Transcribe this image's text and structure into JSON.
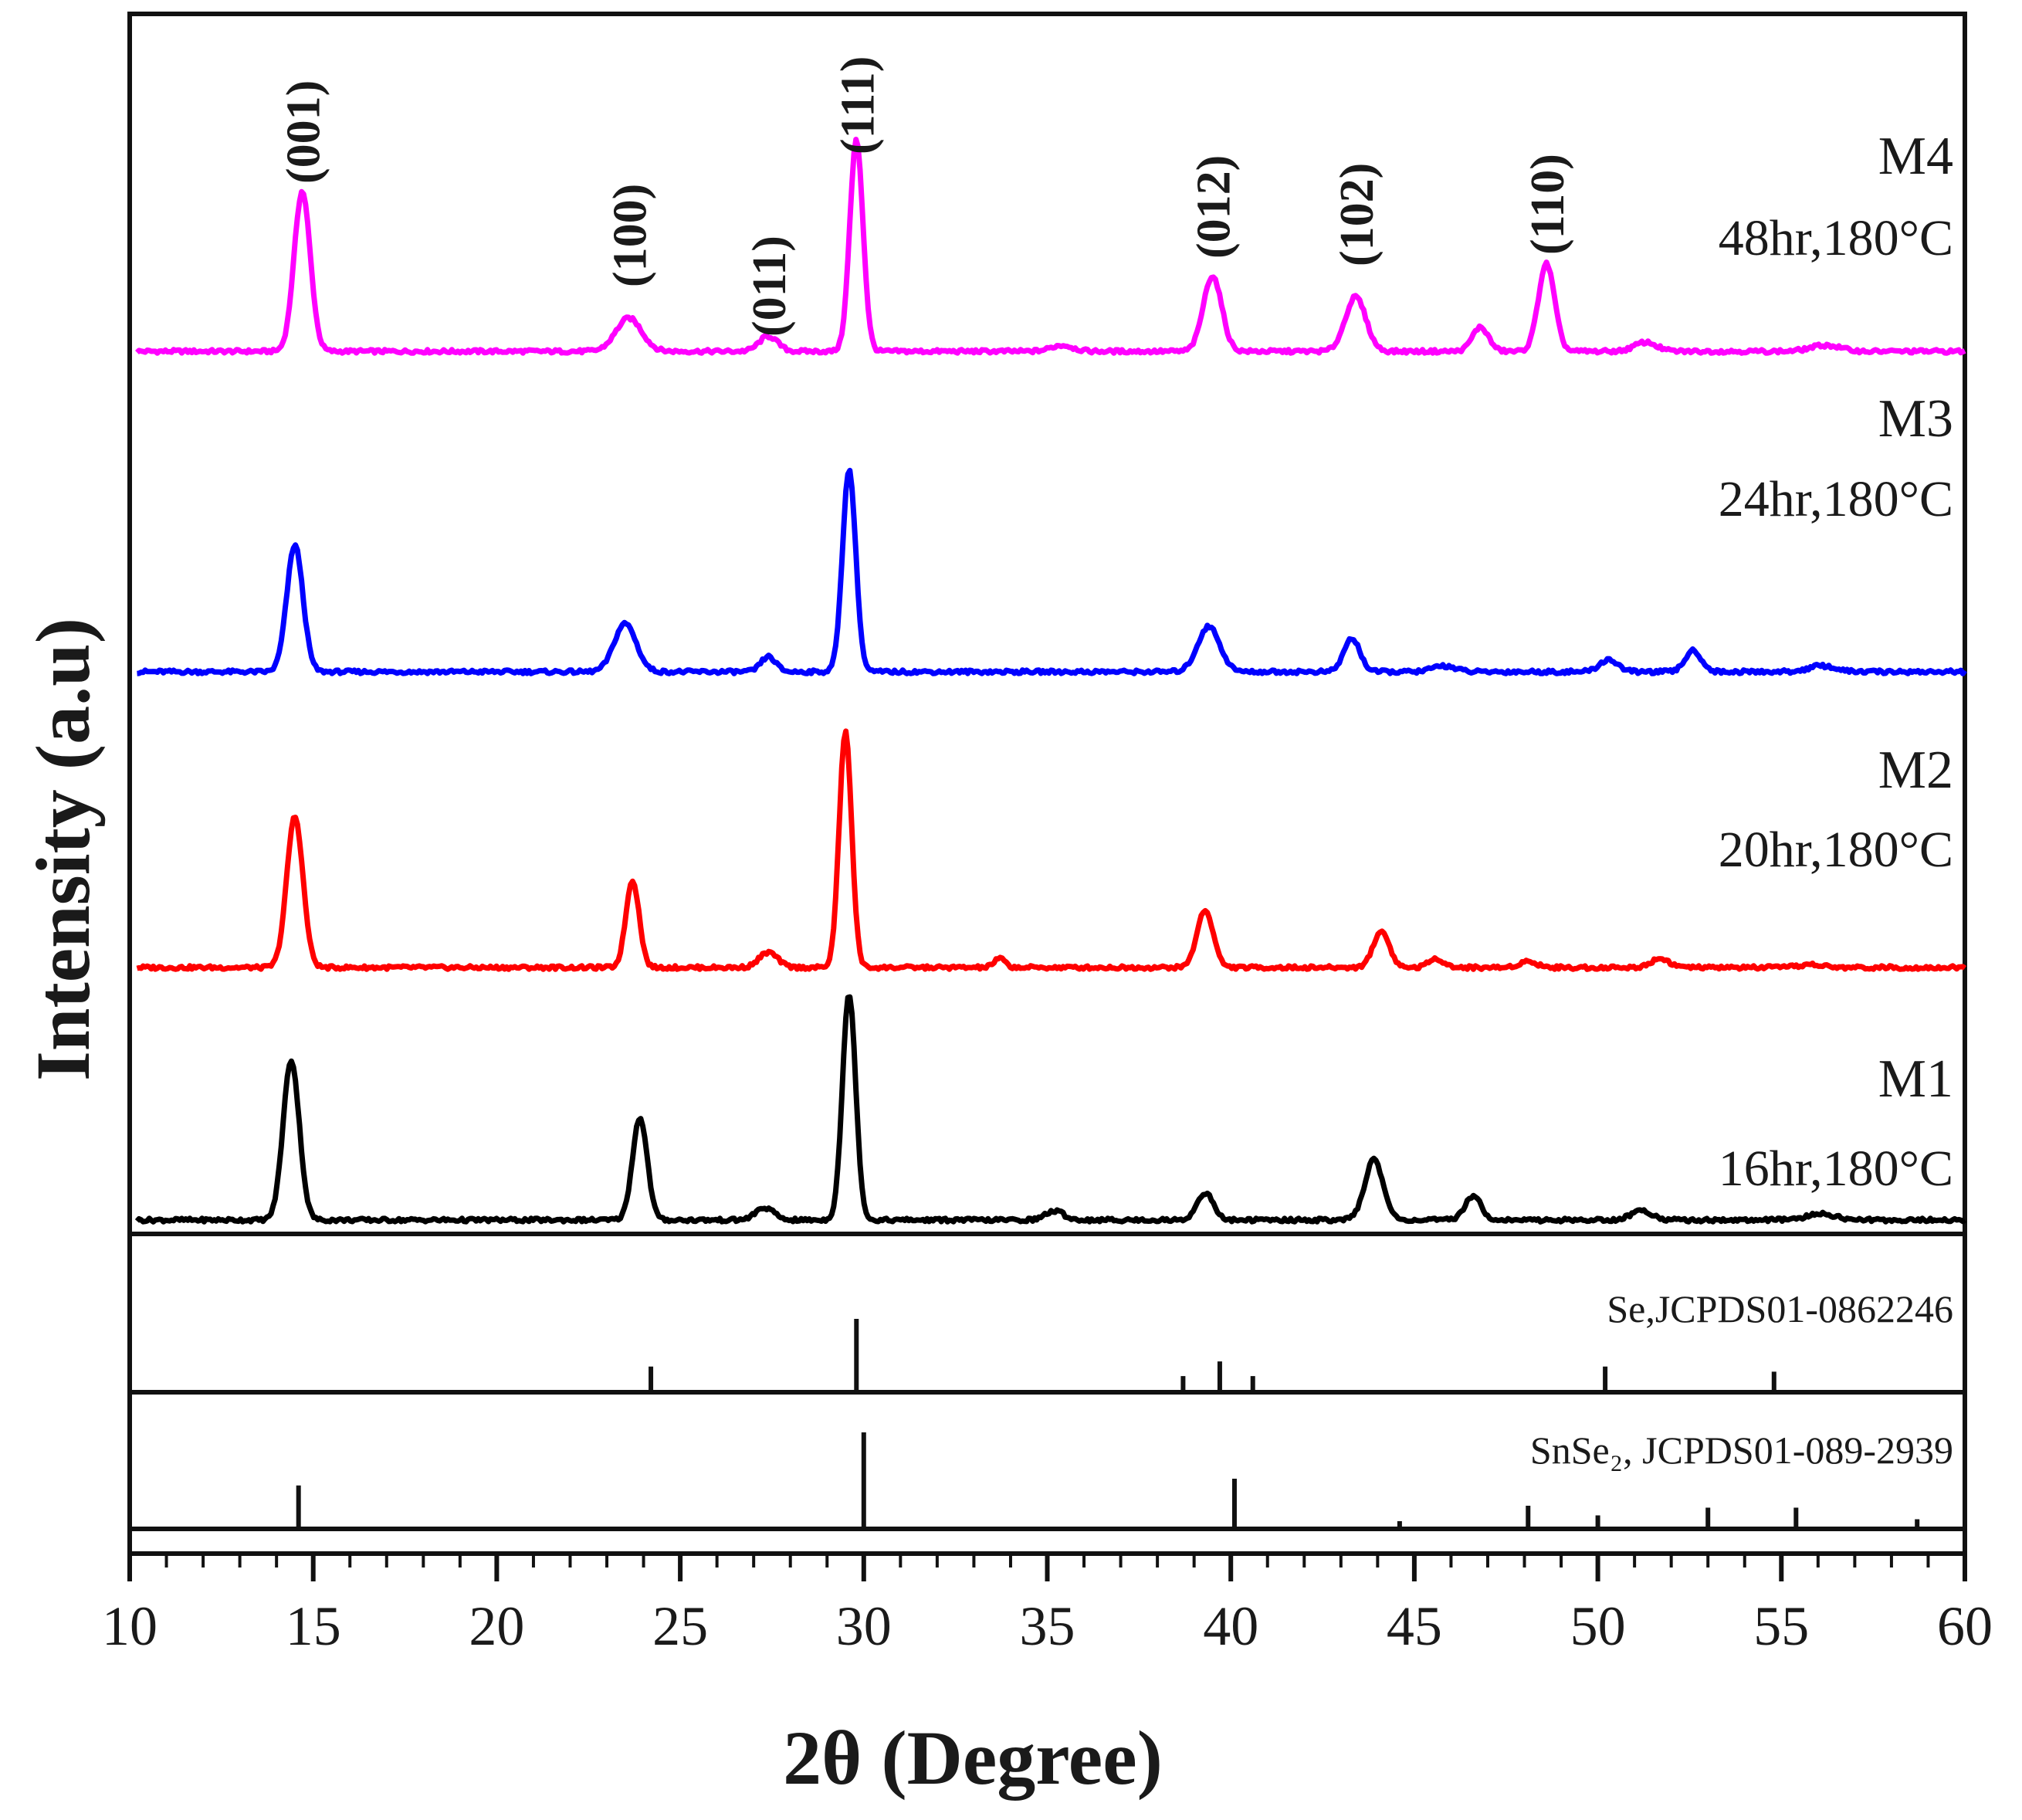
{
  "chart_data": {
    "type": "line",
    "title": "",
    "xlabel": "2θ (Degree)",
    "ylabel": "Intensity (a.u)",
    "xlim": [
      10,
      60
    ],
    "xticks": [
      "10",
      "15",
      "20",
      "25",
      "30",
      "35",
      "40",
      "45",
      "50",
      "55",
      "60"
    ],
    "grid": false,
    "series": [
      {
        "name": "M4",
        "condition": "48hr,180°C",
        "color": "#ff00ff",
        "peaks": [
          {
            "x": 14.7,
            "h": 0.53,
            "w": 0.22
          },
          {
            "x": 23.6,
            "h": 0.11,
            "w": 0.35
          },
          {
            "x": 27.4,
            "h": 0.05,
            "w": 0.25
          },
          {
            "x": 29.8,
            "h": 0.7,
            "w": 0.18
          },
          {
            "x": 35.4,
            "h": 0.02,
            "w": 0.3
          },
          {
            "x": 39.5,
            "h": 0.25,
            "w": 0.25
          },
          {
            "x": 43.4,
            "h": 0.18,
            "w": 0.28
          },
          {
            "x": 46.8,
            "h": 0.08,
            "w": 0.22
          },
          {
            "x": 48.6,
            "h": 0.29,
            "w": 0.22
          },
          {
            "x": 51.3,
            "h": 0.03,
            "w": 0.3
          },
          {
            "x": 56.2,
            "h": 0.02,
            "w": 0.4
          }
        ]
      },
      {
        "name": "M3",
        "condition": "24hr,180°C",
        "color": "#0000ff",
        "peaks": [
          {
            "x": 14.5,
            "h": 0.42,
            "w": 0.22
          },
          {
            "x": 23.5,
            "h": 0.16,
            "w": 0.3
          },
          {
            "x": 27.4,
            "h": 0.05,
            "w": 0.2
          },
          {
            "x": 29.6,
            "h": 0.67,
            "w": 0.18
          },
          {
            "x": 39.4,
            "h": 0.15,
            "w": 0.3
          },
          {
            "x": 43.3,
            "h": 0.11,
            "w": 0.22
          },
          {
            "x": 45.8,
            "h": 0.02,
            "w": 0.3
          },
          {
            "x": 50.3,
            "h": 0.04,
            "w": 0.25
          },
          {
            "x": 52.6,
            "h": 0.07,
            "w": 0.22
          },
          {
            "x": 56.1,
            "h": 0.02,
            "w": 0.35
          }
        ]
      },
      {
        "name": "M2",
        "condition": "20hr,180°C",
        "color": "#ff0000",
        "peaks": [
          {
            "x": 14.5,
            "h": 0.5,
            "w": 0.22
          },
          {
            "x": 23.7,
            "h": 0.29,
            "w": 0.18
          },
          {
            "x": 27.4,
            "h": 0.05,
            "w": 0.25
          },
          {
            "x": 29.5,
            "h": 0.78,
            "w": 0.17
          },
          {
            "x": 33.7,
            "h": 0.03,
            "w": 0.15
          },
          {
            "x": 39.3,
            "h": 0.19,
            "w": 0.22
          },
          {
            "x": 44.1,
            "h": 0.12,
            "w": 0.22
          },
          {
            "x": 45.6,
            "h": 0.03,
            "w": 0.2
          },
          {
            "x": 48.1,
            "h": 0.02,
            "w": 0.25
          },
          {
            "x": 51.7,
            "h": 0.03,
            "w": 0.25
          },
          {
            "x": 55.8,
            "h": 0.01,
            "w": 0.3
          }
        ]
      },
      {
        "name": "M1",
        "condition": "16hr,180°C",
        "color": "#000000",
        "peaks": [
          {
            "x": 14.4,
            "h": 0.53,
            "w": 0.22
          },
          {
            "x": 23.9,
            "h": 0.34,
            "w": 0.2
          },
          {
            "x": 27.3,
            "h": 0.04,
            "w": 0.25
          },
          {
            "x": 29.6,
            "h": 0.75,
            "w": 0.18
          },
          {
            "x": 35.2,
            "h": 0.03,
            "w": 0.25
          },
          {
            "x": 39.3,
            "h": 0.09,
            "w": 0.22
          },
          {
            "x": 43.9,
            "h": 0.2,
            "w": 0.25
          },
          {
            "x": 46.6,
            "h": 0.08,
            "w": 0.22
          },
          {
            "x": 51.2,
            "h": 0.03,
            "w": 0.3
          },
          {
            "x": 56.1,
            "h": 0.02,
            "w": 0.4
          }
        ]
      }
    ],
    "peak_labels": [
      {
        "text": "(001)",
        "x": 14.7
      },
      {
        "text": "(100)",
        "x": 23.6
      },
      {
        "text": "(011)",
        "x": 27.4
      },
      {
        "text": "(111)",
        "x": 29.8
      },
      {
        "text": "(012)",
        "x": 39.5
      },
      {
        "text": "(102)",
        "x": 43.4
      },
      {
        "text": "(110)",
        "x": 48.6
      }
    ],
    "references": [
      {
        "label": "Se,JCPDS01-0862246",
        "lines": [
          {
            "x": 24.2,
            "h": 0.35
          },
          {
            "x": 29.8,
            "h": 1.0
          },
          {
            "x": 38.7,
            "h": 0.22
          },
          {
            "x": 39.7,
            "h": 0.42
          },
          {
            "x": 40.6,
            "h": 0.22
          },
          {
            "x": 50.2,
            "h": 0.35
          },
          {
            "x": 54.8,
            "h": 0.28
          }
        ]
      },
      {
        "label": "SnSe₂, JCPDS01-089-2939",
        "lines": [
          {
            "x": 14.6,
            "h": 0.45
          },
          {
            "x": 30.0,
            "h": 1.0
          },
          {
            "x": 40.1,
            "h": 0.52
          },
          {
            "x": 44.6,
            "h": 0.08
          },
          {
            "x": 48.1,
            "h": 0.24
          },
          {
            "x": 50.0,
            "h": 0.14
          },
          {
            "x": 53.0,
            "h": 0.22
          },
          {
            "x": 55.4,
            "h": 0.22
          },
          {
            "x": 58.7,
            "h": 0.1
          }
        ]
      }
    ]
  }
}
